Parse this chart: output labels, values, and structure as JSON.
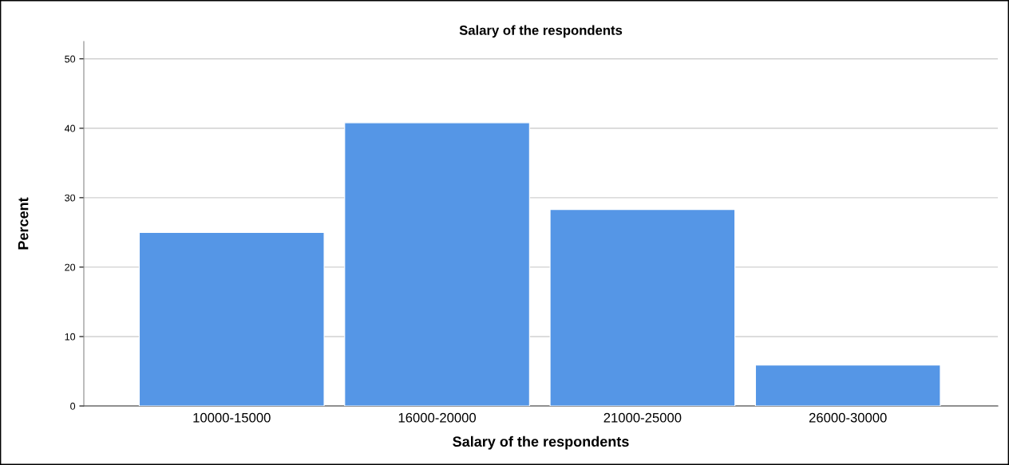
{
  "chart_data": {
    "type": "bar",
    "title": "Salary of the respondents",
    "xlabel": "Salary of the respondents",
    "ylabel": "Percent",
    "categories": [
      "10000-15000",
      "16000-20000",
      "21000-25000",
      "26000-30000"
    ],
    "values": [
      25.0,
      40.8,
      28.3,
      5.9
    ],
    "color": "#5596e6",
    "ylim": [
      0,
      52.5
    ],
    "yticks": [
      0,
      10,
      20,
      30,
      40,
      50
    ],
    "grid": "y"
  }
}
